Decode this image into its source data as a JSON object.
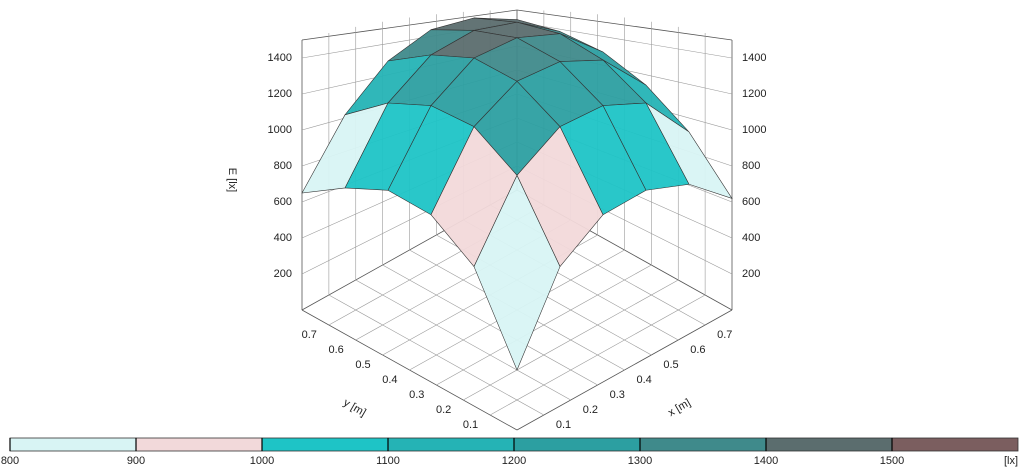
{
  "chart_data": {
    "type": "surface",
    "zlabel": "E [lx]",
    "xlabel": "x [m]",
    "ylabel": "y [m]",
    "x": [
      0,
      0.16,
      0.32,
      0.48,
      0.64,
      0.8
    ],
    "y": [
      0,
      0.16,
      0.32,
      0.48,
      0.64,
      0.8
    ],
    "z": [
      [
        300,
        700,
        850,
        870,
        800,
        620
      ],
      [
        700,
        1050,
        1200,
        1220,
        1150,
        900
      ],
      [
        850,
        1200,
        1350,
        1380,
        1320,
        1100
      ],
      [
        870,
        1220,
        1400,
        1450,
        1420,
        1250
      ],
      [
        780,
        1150,
        1350,
        1440,
        1450,
        1350
      ],
      [
        650,
        1000,
        1250,
        1400,
        1450,
        1420
      ]
    ],
    "xlim": [
      0,
      0.8
    ],
    "ylim": [
      0,
      0.8
    ],
    "zlim": [
      0,
      1500
    ],
    "xticks": [
      0.1,
      0.2,
      0.3,
      0.4,
      0.5,
      0.6,
      0.7
    ],
    "yticks": [
      0.1,
      0.2,
      0.3,
      0.4,
      0.5,
      0.6,
      0.7
    ],
    "zticks": [
      200,
      400,
      600,
      800,
      1000,
      1200,
      1400
    ],
    "grid": true,
    "colorbar": {
      "ticks": [
        800,
        900,
        1000,
        1100,
        1200,
        1300,
        1400,
        1500
      ],
      "unit": "[lx]",
      "colors": [
        "#d8f4f4",
        "#f2d9da",
        "#1ec4c6",
        "#25b3b5",
        "#2c9fa1",
        "#3f8a8b",
        "#5b6d6e",
        "#7b5e5f"
      ]
    }
  }
}
